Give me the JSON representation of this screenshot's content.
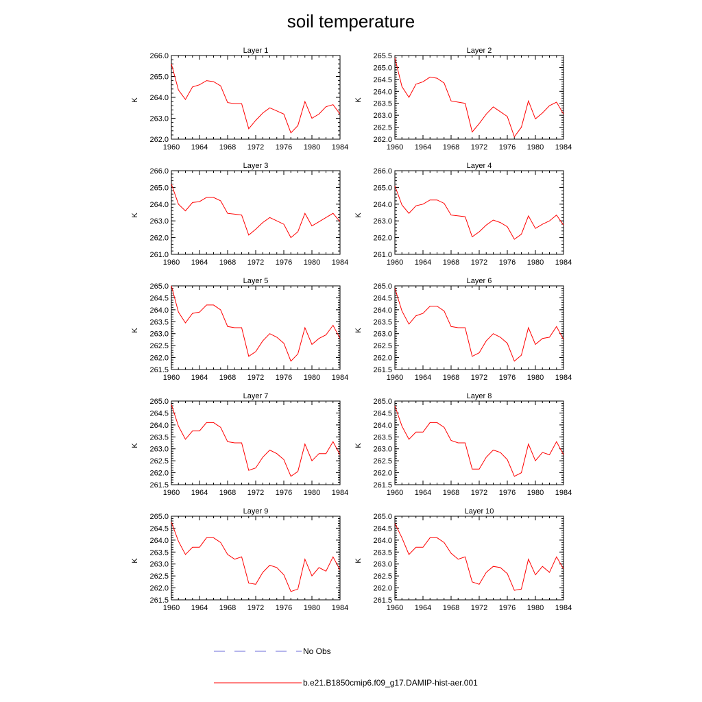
{
  "title": "soil temperature",
  "colors": {
    "model": "#ff0000",
    "obs": "#6b6bd8",
    "axis": "#000000"
  },
  "legend": [
    {
      "label": "No Obs",
      "style": "dashed",
      "color": "#6b6bd8"
    },
    {
      "label": "b.e21.B1850cmip6.f09_g17.DAMIP-hist-aer.001",
      "style": "solid",
      "color": "#ff0000"
    }
  ],
  "chart_data": [
    {
      "type": "line",
      "title": "Layer 1",
      "ylabel": "K",
      "xlim": [
        1960,
        1984
      ],
      "ylim": [
        262.0,
        266.0
      ],
      "xticks": [
        1960,
        1964,
        1968,
        1972,
        1976,
        1980,
        1984
      ],
      "yticks": [
        "262.0",
        "263.0",
        "264.0",
        "265.0",
        "266.0"
      ],
      "x": [
        1960,
        1961,
        1962,
        1963,
        1964,
        1965,
        1966,
        1967,
        1968,
        1969,
        1970,
        1971,
        1972,
        1973,
        1974,
        1975,
        1976,
        1977,
        1978,
        1979,
        1980,
        1981,
        1982,
        1983,
        1984
      ],
      "series": [
        {
          "name": "b.e21.B1850cmip6.f09_g17.DAMIP-hist-aer.001",
          "values": [
            265.6,
            264.35,
            263.9,
            264.5,
            264.6,
            264.8,
            264.75,
            264.55,
            263.75,
            263.7,
            263.7,
            262.5,
            262.9,
            263.25,
            263.5,
            263.35,
            263.2,
            262.3,
            262.65,
            263.8,
            263.0,
            263.2,
            263.55,
            263.65,
            263.2
          ]
        }
      ]
    },
    {
      "type": "line",
      "title": "Layer 2",
      "ylabel": "K",
      "xlim": [
        1960,
        1984
      ],
      "ylim": [
        262.0,
        265.5
      ],
      "xticks": [
        1960,
        1964,
        1968,
        1972,
        1976,
        1980,
        1984
      ],
      "yticks": [
        "262.0",
        "262.5",
        "263.0",
        "263.5",
        "264.0",
        "264.5",
        "265.0",
        "265.5"
      ],
      "x": [
        1960,
        1961,
        1962,
        1963,
        1964,
        1965,
        1966,
        1967,
        1968,
        1969,
        1970,
        1971,
        1972,
        1973,
        1974,
        1975,
        1976,
        1977,
        1978,
        1979,
        1980,
        1981,
        1982,
        1983,
        1984
      ],
      "series": [
        {
          "name": "b.e21.B1850cmip6.f09_g17.DAMIP-hist-aer.001",
          "values": [
            265.4,
            264.2,
            263.75,
            264.3,
            264.4,
            264.6,
            264.55,
            264.35,
            263.6,
            263.55,
            263.5,
            262.3,
            262.65,
            263.05,
            263.35,
            263.15,
            262.95,
            262.1,
            262.5,
            263.6,
            262.85,
            263.1,
            263.4,
            263.55,
            263.05
          ]
        }
      ]
    },
    {
      "type": "line",
      "title": "Layer 3",
      "ylabel": "K",
      "xlim": [
        1960,
        1984
      ],
      "ylim": [
        261.0,
        266.0
      ],
      "xticks": [
        1960,
        1964,
        1968,
        1972,
        1976,
        1980,
        1984
      ],
      "yticks": [
        "261.0",
        "262.0",
        "263.0",
        "264.0",
        "265.0",
        "266.0"
      ],
      "x": [
        1960,
        1961,
        1962,
        1963,
        1964,
        1965,
        1966,
        1967,
        1968,
        1969,
        1970,
        1971,
        1972,
        1973,
        1974,
        1975,
        1976,
        1977,
        1978,
        1979,
        1980,
        1981,
        1982,
        1983,
        1984
      ],
      "series": [
        {
          "name": "b.e21.B1850cmip6.f09_g17.DAMIP-hist-aer.001",
          "values": [
            265.2,
            264.0,
            263.6,
            264.1,
            264.15,
            264.4,
            264.4,
            264.2,
            263.45,
            263.4,
            263.35,
            262.15,
            262.5,
            262.9,
            263.2,
            263.0,
            262.8,
            262.0,
            262.35,
            263.45,
            262.7,
            262.95,
            263.2,
            263.45,
            262.95
          ]
        }
      ]
    },
    {
      "type": "line",
      "title": "Layer 4",
      "ylabel": "K",
      "xlim": [
        1960,
        1984
      ],
      "ylim": [
        261.0,
        266.0
      ],
      "xticks": [
        1960,
        1964,
        1968,
        1972,
        1976,
        1980,
        1984
      ],
      "yticks": [
        "261.0",
        "262.0",
        "263.0",
        "264.0",
        "265.0",
        "266.0"
      ],
      "x": [
        1960,
        1961,
        1962,
        1963,
        1964,
        1965,
        1966,
        1967,
        1968,
        1969,
        1970,
        1971,
        1972,
        1973,
        1974,
        1975,
        1976,
        1977,
        1978,
        1979,
        1980,
        1981,
        1982,
        1983,
        1984
      ],
      "series": [
        {
          "name": "b.e21.B1850cmip6.f09_g17.DAMIP-hist-aer.001",
          "values": [
            265.1,
            263.95,
            263.45,
            263.9,
            264.0,
            264.25,
            264.25,
            264.05,
            263.35,
            263.3,
            263.25,
            262.05,
            262.35,
            262.75,
            263.05,
            262.9,
            262.65,
            261.9,
            262.2,
            263.3,
            262.55,
            262.8,
            263.0,
            263.35,
            262.75
          ]
        }
      ]
    },
    {
      "type": "line",
      "title": "Layer 5",
      "ylabel": "K",
      "xlim": [
        1960,
        1984
      ],
      "ylim": [
        261.5,
        265.0
      ],
      "xticks": [
        1960,
        1964,
        1968,
        1972,
        1976,
        1980,
        1984
      ],
      "yticks": [
        "261.5",
        "262.0",
        "262.5",
        "263.0",
        "263.5",
        "264.0",
        "264.5",
        "265.0"
      ],
      "x": [
        1960,
        1961,
        1962,
        1963,
        1964,
        1965,
        1966,
        1967,
        1968,
        1969,
        1970,
        1971,
        1972,
        1973,
        1974,
        1975,
        1976,
        1977,
        1978,
        1979,
        1980,
        1981,
        1982,
        1983,
        1984
      ],
      "series": [
        {
          "name": "b.e21.B1850cmip6.f09_g17.DAMIP-hist-aer.001",
          "values": [
            265.0,
            263.9,
            263.45,
            263.85,
            263.9,
            264.2,
            264.2,
            264.0,
            263.3,
            263.25,
            263.25,
            262.05,
            262.25,
            262.7,
            263.0,
            262.85,
            262.6,
            261.85,
            262.15,
            263.25,
            262.55,
            262.8,
            262.95,
            263.35,
            262.8
          ]
        }
      ]
    },
    {
      "type": "line",
      "title": "Layer 6",
      "ylabel": "K",
      "xlim": [
        1960,
        1984
      ],
      "ylim": [
        261.5,
        265.0
      ],
      "xticks": [
        1960,
        1964,
        1968,
        1972,
        1976,
        1980,
        1984
      ],
      "yticks": [
        "261.5",
        "262.0",
        "262.5",
        "263.0",
        "263.5",
        "264.0",
        "264.5",
        "265.0"
      ],
      "x": [
        1960,
        1961,
        1962,
        1963,
        1964,
        1965,
        1966,
        1967,
        1968,
        1969,
        1970,
        1971,
        1972,
        1973,
        1974,
        1975,
        1976,
        1977,
        1978,
        1979,
        1980,
        1981,
        1982,
        1983,
        1984
      ],
      "series": [
        {
          "name": "b.e21.B1850cmip6.f09_g17.DAMIP-hist-aer.001",
          "values": [
            264.9,
            263.95,
            263.4,
            263.75,
            263.85,
            264.15,
            264.15,
            263.95,
            263.3,
            263.25,
            263.25,
            262.05,
            262.2,
            262.7,
            263.0,
            262.85,
            262.6,
            261.85,
            262.1,
            263.25,
            262.55,
            262.8,
            262.85,
            263.3,
            262.75
          ]
        }
      ]
    },
    {
      "type": "line",
      "title": "Layer 7",
      "ylabel": "K",
      "xlim": [
        1960,
        1984
      ],
      "ylim": [
        261.5,
        265.0
      ],
      "xticks": [
        1960,
        1964,
        1968,
        1972,
        1976,
        1980,
        1984
      ],
      "yticks": [
        "261.5",
        "262.0",
        "262.5",
        "263.0",
        "263.5",
        "264.0",
        "264.5",
        "265.0"
      ],
      "x": [
        1960,
        1961,
        1962,
        1963,
        1964,
        1965,
        1966,
        1967,
        1968,
        1969,
        1970,
        1971,
        1972,
        1973,
        1974,
        1975,
        1976,
        1977,
        1978,
        1979,
        1980,
        1981,
        1982,
        1983,
        1984
      ],
      "series": [
        {
          "name": "b.e21.B1850cmip6.f09_g17.DAMIP-hist-aer.001",
          "values": [
            264.85,
            263.95,
            263.4,
            263.75,
            263.75,
            264.1,
            264.1,
            263.9,
            263.3,
            263.25,
            263.25,
            262.1,
            262.2,
            262.65,
            262.95,
            262.8,
            262.55,
            261.85,
            262.05,
            263.2,
            262.5,
            262.8,
            262.8,
            263.3,
            262.75
          ]
        }
      ]
    },
    {
      "type": "line",
      "title": "Layer 8",
      "ylabel": "K",
      "xlim": [
        1960,
        1984
      ],
      "ylim": [
        261.5,
        265.0
      ],
      "xticks": [
        1960,
        1964,
        1968,
        1972,
        1976,
        1980,
        1984
      ],
      "yticks": [
        "261.5",
        "262.0",
        "262.5",
        "263.0",
        "263.5",
        "264.0",
        "264.5",
        "265.0"
      ],
      "x": [
        1960,
        1961,
        1962,
        1963,
        1964,
        1965,
        1966,
        1967,
        1968,
        1969,
        1970,
        1971,
        1972,
        1973,
        1974,
        1975,
        1976,
        1977,
        1978,
        1979,
        1980,
        1981,
        1982,
        1983,
        1984
      ],
      "series": [
        {
          "name": "b.e21.B1850cmip6.f09_g17.DAMIP-hist-aer.001",
          "values": [
            264.8,
            263.95,
            263.4,
            263.7,
            263.7,
            264.1,
            264.1,
            263.9,
            263.35,
            263.25,
            263.25,
            262.15,
            262.15,
            262.65,
            262.95,
            262.85,
            262.55,
            261.85,
            262.0,
            263.2,
            262.5,
            262.85,
            262.75,
            263.3,
            262.75
          ]
        }
      ]
    },
    {
      "type": "line",
      "title": "Layer 9",
      "ylabel": "K",
      "xlim": [
        1960,
        1984
      ],
      "ylim": [
        261.5,
        265.0
      ],
      "xticks": [
        1960,
        1964,
        1968,
        1972,
        1976,
        1980,
        1984
      ],
      "yticks": [
        "261.5",
        "262.0",
        "262.5",
        "263.0",
        "263.5",
        "264.0",
        "264.5",
        "265.0"
      ],
      "x": [
        1960,
        1961,
        1962,
        1963,
        1964,
        1965,
        1966,
        1967,
        1968,
        1969,
        1970,
        1971,
        1972,
        1973,
        1974,
        1975,
        1976,
        1977,
        1978,
        1979,
        1980,
        1981,
        1982,
        1983,
        1984
      ],
      "series": [
        {
          "name": "b.e21.B1850cmip6.f09_g17.DAMIP-hist-aer.001",
          "values": [
            264.75,
            263.95,
            263.4,
            263.7,
            263.7,
            264.1,
            264.1,
            263.9,
            263.4,
            263.2,
            263.3,
            262.2,
            262.15,
            262.65,
            262.95,
            262.85,
            262.55,
            261.85,
            261.95,
            263.2,
            262.5,
            262.85,
            262.7,
            263.3,
            262.75
          ]
        }
      ]
    },
    {
      "type": "line",
      "title": "Layer 10",
      "ylabel": "K",
      "xlim": [
        1960,
        1984
      ],
      "ylim": [
        261.5,
        265.0
      ],
      "xticks": [
        1960,
        1964,
        1968,
        1972,
        1976,
        1980,
        1984
      ],
      "yticks": [
        "261.5",
        "262.0",
        "262.5",
        "263.0",
        "263.5",
        "264.0",
        "264.5",
        "265.0"
      ],
      "x": [
        1960,
        1961,
        1962,
        1963,
        1964,
        1965,
        1966,
        1967,
        1968,
        1969,
        1970,
        1971,
        1972,
        1973,
        1974,
        1975,
        1976,
        1977,
        1978,
        1979,
        1980,
        1981,
        1982,
        1983,
        1984
      ],
      "series": [
        {
          "name": "b.e21.B1850cmip6.f09_g17.DAMIP-hist-aer.001",
          "values": [
            264.7,
            264.1,
            263.4,
            263.7,
            263.7,
            264.1,
            264.1,
            263.9,
            263.45,
            263.2,
            263.3,
            262.25,
            262.15,
            262.65,
            262.9,
            262.85,
            262.6,
            261.9,
            261.95,
            263.2,
            262.55,
            262.9,
            262.65,
            263.3,
            262.8
          ]
        }
      ]
    }
  ]
}
